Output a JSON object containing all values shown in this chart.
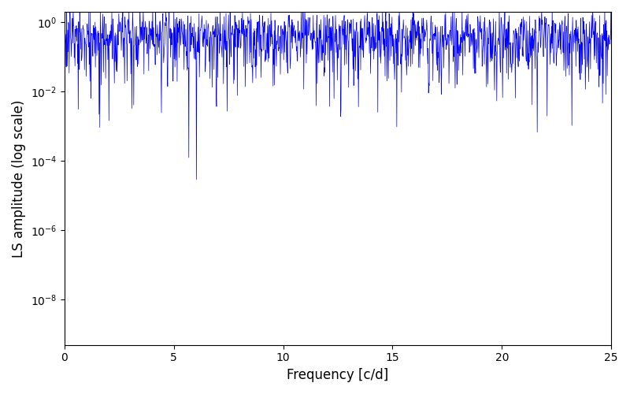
{
  "xlabel": "Frequency [c/d]",
  "ylabel": "LS amplitude (log scale)",
  "xlim": [
    0,
    25
  ],
  "ylim": [
    5e-10,
    2.0
  ],
  "line_color": "#0000FF",
  "line_width": 0.5,
  "background_color": "#ffffff",
  "figsize": [
    8.0,
    5.0
  ],
  "dpi": 100,
  "seed": 1234,
  "n_points": 1500,
  "freq_max": 25.0,
  "yticks": [
    1e-08,
    1e-06,
    0.0001,
    0.01,
    1.0
  ],
  "xticks": [
    0,
    5,
    10,
    15,
    20,
    25
  ]
}
